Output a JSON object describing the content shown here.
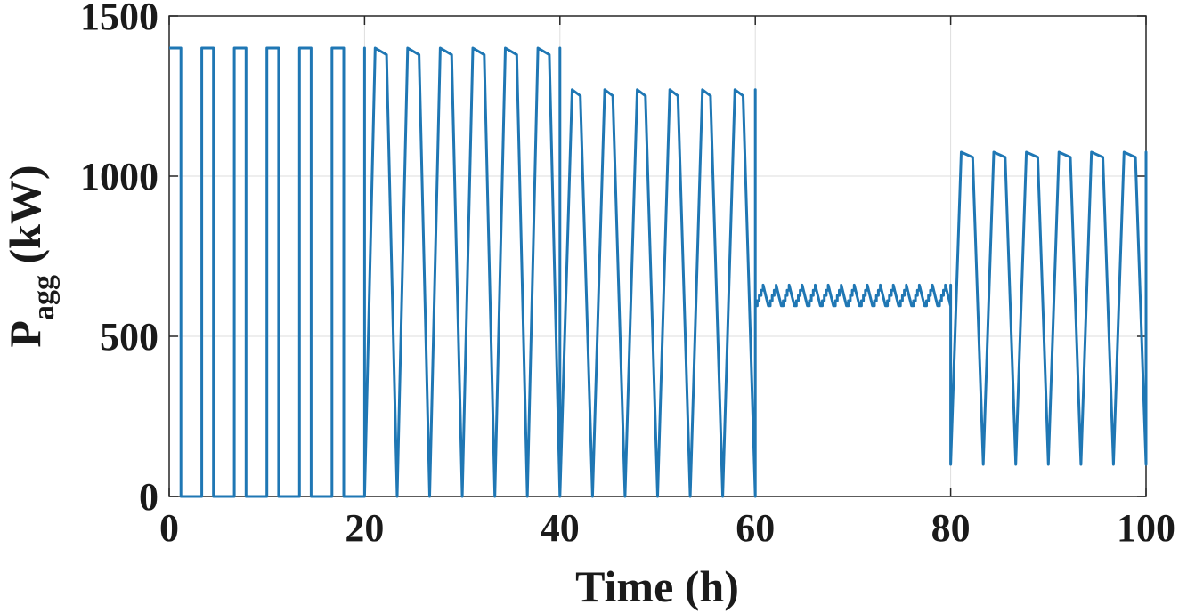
{
  "chart_data": {
    "type": "line",
    "title": "",
    "xlabel": "Time (h)",
    "ylabel": {
      "main": "P",
      "subscript": "agg",
      "unit": " (kW)"
    },
    "xlim": [
      0,
      100
    ],
    "ylim": [
      0,
      1500
    ],
    "x_ticks": [
      0,
      20,
      40,
      60,
      80,
      100
    ],
    "y_ticks": [
      0,
      500,
      1000,
      1500
    ],
    "grid": true,
    "legend": "none",
    "line_color": "#1f77b4",
    "series": [
      {
        "segments": [
          {
            "shape": "square",
            "t_start": 0,
            "t_end": 20,
            "period": 3.333,
            "on_fraction": 0.36,
            "high": 1400,
            "low": 0
          },
          {
            "shape": "triangle",
            "t_start": 20,
            "t_end": 40,
            "period": 3.333,
            "high": 1400,
            "low": 0,
            "peak_plateau": 0.35
          },
          {
            "shape": "triangle",
            "t_start": 40,
            "t_end": 60,
            "period": 3.333,
            "high": 1270,
            "low": 0,
            "peak_plateau": 0.25
          },
          {
            "shape": "sawtooth",
            "t_start": 60,
            "t_end": 80,
            "period": 1.333,
            "high": 660,
            "low": 595
          },
          {
            "shape": "triangle",
            "t_start": 80,
            "t_end": 100,
            "period": 3.333,
            "high": 1075,
            "low": 100,
            "peak_plateau": 0.35
          }
        ]
      }
    ]
  }
}
